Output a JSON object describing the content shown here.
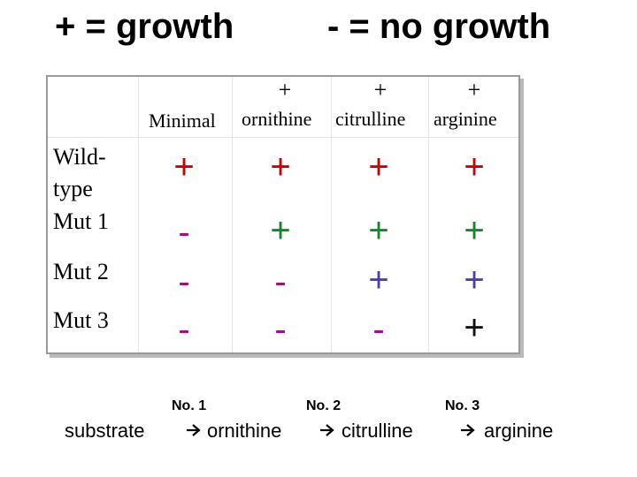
{
  "header": {
    "left": "+ = growth",
    "right": "- = no growth"
  },
  "table": {
    "col_prefix": [
      "",
      "+",
      "+",
      "+"
    ],
    "columns": [
      "Minimal",
      "ornithine",
      "citrulline",
      "arginine"
    ],
    "rows": [
      {
        "label_line1": "Wild-",
        "label_line2": "type",
        "cells": [
          "+",
          "+",
          "+",
          "+"
        ]
      },
      {
        "label_line1": "Mut 1",
        "label_line2": "",
        "cells": [
          "-",
          "+",
          "+",
          "+"
        ]
      },
      {
        "label_line1": "Mut 2",
        "label_line2": "",
        "cells": [
          "-",
          "-",
          "+",
          "+"
        ]
      },
      {
        "label_line1": "Mut 3",
        "label_line2": "",
        "cells": [
          "-",
          "-",
          "-",
          "+"
        ]
      }
    ]
  },
  "pathway": {
    "steps": [
      "No. 1",
      "No. 2",
      "No. 3"
    ],
    "substrate": "substrate",
    "products": [
      "ornithine",
      "citrulline",
      "arginine"
    ],
    "arrow_icon": "right-arrow-icon"
  },
  "colors": {
    "growth": "#cc0000",
    "growth_alt": "#2233aa",
    "no_growth": "#a0117a"
  }
}
